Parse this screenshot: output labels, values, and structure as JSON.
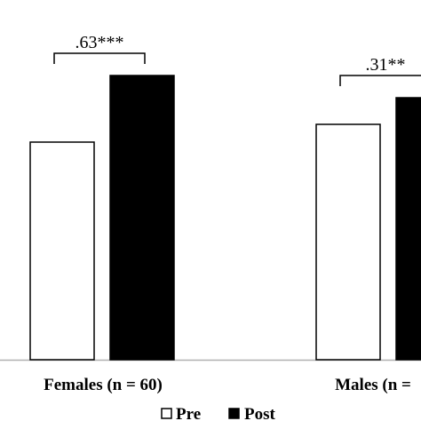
{
  "chart_data": {
    "type": "bar",
    "categories": [
      "Females (n = 60)",
      "Males (n ="
    ],
    "series": [
      {
        "name": "Pre",
        "values": [
          2.45,
          2.65
        ],
        "color": "#ffffff",
        "stroke": "#000000"
      },
      {
        "name": "Post",
        "values": [
          3.2,
          2.95
        ],
        "color": "#000000",
        "stroke": "#000000"
      }
    ],
    "annotations": [
      {
        "text": ".63***",
        "category_index": 0
      },
      {
        "text": ".31**",
        "category_index": 1
      }
    ],
    "ylim": [
      0,
      4
    ],
    "grid": false,
    "legend_position": "bottom-center",
    "title": "",
    "xlabel": "",
    "ylabel": ""
  }
}
